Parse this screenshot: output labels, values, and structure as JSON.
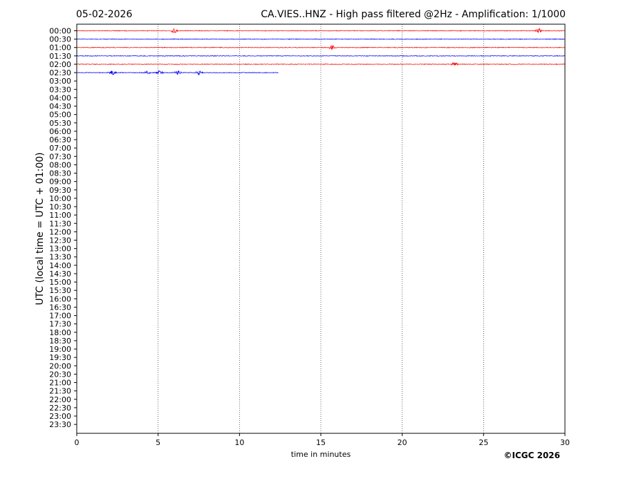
{
  "chart_data": {
    "type": "line",
    "date": "05-02-2026",
    "title": "CA.VIES..HNZ - High pass filtered @2Hz - Amplification: 1/1000",
    "xlabel": "time in minutes",
    "ylabel": "UTC (local time = UTC + 01:00)",
    "copyright": "©ICGC 2026",
    "xlim": [
      0,
      30
    ],
    "x_ticks": [
      0,
      5,
      10,
      15,
      20,
      25,
      30
    ],
    "y_ticks": [
      "00:00",
      "00:30",
      "01:00",
      "01:30",
      "02:00",
      "02:30",
      "03:00",
      "03:30",
      "04:00",
      "04:30",
      "05:00",
      "05:30",
      "06:00",
      "06:30",
      "07:00",
      "07:30",
      "08:00",
      "08:30",
      "09:00",
      "09:30",
      "10:00",
      "10:30",
      "11:00",
      "11:30",
      "12:00",
      "12:30",
      "13:00",
      "13:30",
      "14:00",
      "14:30",
      "15:00",
      "15:30",
      "16:00",
      "16:30",
      "17:00",
      "17:30",
      "18:00",
      "18:30",
      "19:00",
      "19:30",
      "20:00",
      "20:30",
      "21:00",
      "21:30",
      "22:00",
      "22:30",
      "23:00",
      "23:30"
    ],
    "grid": "vertical dotted at x ticks",
    "trace_colors": [
      "#ff0000",
      "#0000ff"
    ],
    "trace_color_cycle": "alternating red / blue by row",
    "traces": [
      {
        "row": "00:00",
        "end_minute": 30,
        "events_minute": [
          6.0,
          28.4
        ]
      },
      {
        "row": "00:30",
        "end_minute": 30,
        "events_minute": []
      },
      {
        "row": "01:00",
        "end_minute": 30,
        "events_minute": [
          15.7
        ]
      },
      {
        "row": "01:30",
        "end_minute": 30,
        "events_minute": []
      },
      {
        "row": "02:00",
        "end_minute": 30,
        "events_minute": [
          23.2
        ]
      },
      {
        "row": "02:30",
        "end_minute": 12.4,
        "events_minute": [
          2.2,
          4.3,
          5.1,
          6.2,
          7.5
        ]
      }
    ]
  }
}
